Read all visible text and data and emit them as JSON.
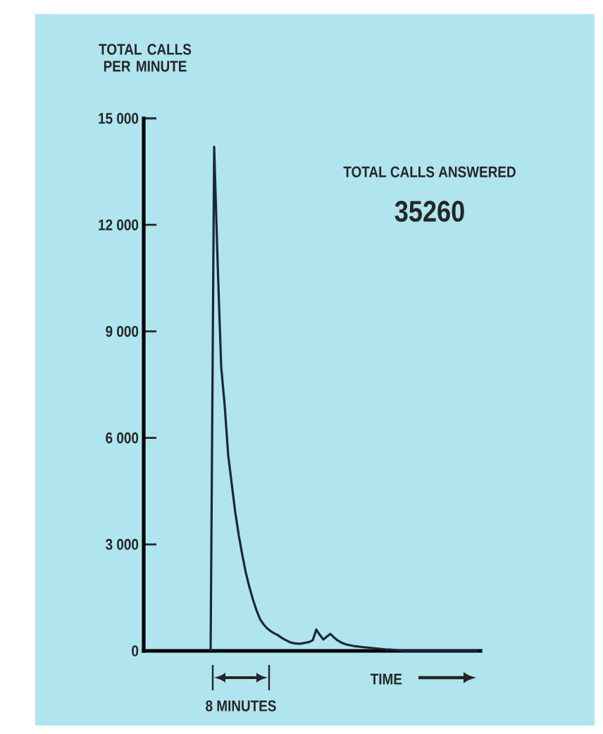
{
  "chart_data": {
    "type": "line",
    "xlabel": "TIME",
    "ylabel": "TOTAL CALLS PER MINUTE",
    "annotations": [
      "TOTAL CALLS ANSWERED",
      "35260",
      "8 MINUTES"
    ],
    "categories": [
      null,
      null,
      null,
      null,
      null,
      null,
      null,
      null,
      null,
      null,
      null,
      null,
      null,
      null,
      null,
      null,
      null,
      null,
      null,
      null,
      null,
      null,
      null,
      null,
      null,
      null,
      null,
      null,
      null,
      null,
      null,
      null,
      null,
      null,
      null,
      null,
      null,
      null,
      null,
      null,
      null,
      null,
      null,
      null,
      null,
      null,
      null,
      null,
      null,
      null,
      null,
      null,
      null,
      null,
      null,
      null,
      null,
      null,
      null,
      null,
      null,
      null,
      null,
      null,
      null,
      null,
      null,
      null,
      null,
      null,
      null,
      null,
      null,
      null,
      null,
      null,
      null,
      null,
      null,
      null,
      null,
      null,
      null,
      null,
      null,
      null,
      null,
      null,
      null,
      null,
      null,
      null,
      null,
      null,
      null,
      null
    ],
    "series": [
      {
        "color": "#1b2736",
        "values": [
          null,
          null,
          null,
          null,
          null,
          null,
          null,
          null,
          null,
          null,
          null,
          null,
          null,
          null,
          null,
          null,
          null,
          null,
          null,
          0,
          14200,
          10900,
          8000,
          6900,
          5500,
          4700,
          3900,
          3250,
          2700,
          2200,
          1800,
          1450,
          1150,
          900,
          750,
          640,
          560,
          500,
          450,
          380,
          320,
          270,
          230,
          210,
          200,
          210,
          230,
          250,
          300,
          600,
          450,
          320,
          400,
          480,
          380,
          300,
          240,
          200,
          170,
          150,
          130,
          120,
          110,
          100,
          90,
          80,
          70,
          60,
          50,
          40,
          40,
          30,
          20,
          10,
          0,
          0,
          0,
          0,
          0,
          0,
          0,
          0,
          0,
          0,
          0,
          0,
          0,
          0,
          0,
          0,
          0,
          0,
          0,
          0,
          0,
          0
        ]
      }
    ],
    "ylim": [
      0,
      15000
    ],
    "yticks": [
      0,
      {
        "value": 3000,
        "label": "3 000"
      },
      {
        "value": 6000,
        "label": "6 000"
      },
      {
        "value": 9000,
        "label": "9 000"
      },
      {
        "value": 12000,
        "label": "12 000"
      },
      {
        "value": 15000,
        "label": "15 000"
      }
    ],
    "tick_labels": "y"
  }
}
